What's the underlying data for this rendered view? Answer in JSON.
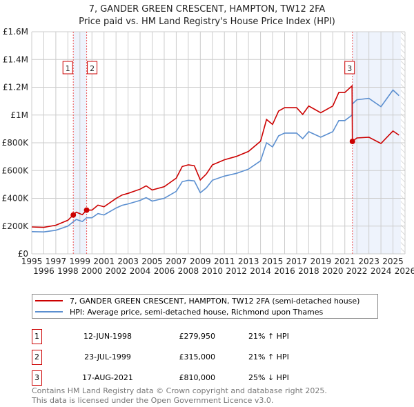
{
  "title": "7, GANDER GREEN CRESCENT, HAMPTON, TW12 2FA",
  "subtitle": "Price paid vs. HM Land Registry's House Price Index (HPI)",
  "chart_data": {
    "type": "line",
    "xlim": [
      1995,
      2026
    ],
    "ylim": [
      0,
      1600000
    ],
    "x_ticks": [
      "1995",
      "1996",
      "1997",
      "1998",
      "1999",
      "2000",
      "2001",
      "2002",
      "2003",
      "2004",
      "2005",
      "2006",
      "2007",
      "2008",
      "2009",
      "2010",
      "2011",
      "2012",
      "2013",
      "2014",
      "2015",
      "2016",
      "2017",
      "2018",
      "2019",
      "2020",
      "2021",
      "2022",
      "2023",
      "2024",
      "2025",
      "2026"
    ],
    "y_ticks": [
      {
        "v": 0,
        "label": "£0"
      },
      {
        "v": 200000,
        "label": "£200K"
      },
      {
        "v": 400000,
        "label": "£400K"
      },
      {
        "v": 600000,
        "label": "£600K"
      },
      {
        "v": 800000,
        "label": "£800K"
      },
      {
        "v": 1000000,
        "label": "£1M"
      },
      {
        "v": 1200000,
        "label": "£1.2M"
      },
      {
        "v": 1400000,
        "label": "£1.4M"
      },
      {
        "v": 1600000,
        "label": "£1.6M"
      }
    ],
    "series": [
      {
        "name": "7, GANDER GREEN CRESCENT, HAMPTON, TW12 2FA (semi-detached house)",
        "color": "#cc0000",
        "x": [
          1995,
          1996,
          1997,
          1998,
          1998.45,
          1998.7,
          1999.2,
          1999.56,
          2000,
          2000.5,
          2001,
          2002,
          2002.5,
          2003,
          2004,
          2004.5,
          2005,
          2006,
          2007,
          2007.5,
          2008,
          2008.5,
          2009,
          2009.5,
          2010,
          2011,
          2012,
          2013,
          2014,
          2014.5,
          2015,
          2015.5,
          2016,
          2017,
          2017.5,
          2018,
          2018.5,
          2019,
          2020,
          2020.5,
          2021,
          2021.6,
          2021.63,
          2022,
          2023,
          2024,
          2024.5,
          2025,
          2025.5
        ],
        "y": [
          194000,
          191000,
          206000,
          242000,
          280000,
          300000,
          282000,
          315000,
          315000,
          351000,
          339000,
          399000,
          424000,
          436000,
          466000,
          490000,
          460000,
          484000,
          545000,
          629000,
          641000,
          635000,
          532000,
          575000,
          641000,
          678000,
          702000,
          738000,
          811000,
          968000,
          932000,
          1029000,
          1053000,
          1053000,
          1004000,
          1065000,
          1041000,
          1016000,
          1065000,
          1162000,
          1162000,
          1210000,
          810000,
          835000,
          840000,
          795000,
          840000,
          885000,
          855000
        ]
      },
      {
        "name": "HPI: Average price, semi-detached house, Richmond upon Thames",
        "color": "#5b8fd0",
        "x": [
          1995,
          1996,
          1997,
          1998,
          1998.45,
          1998.7,
          1999.2,
          1999.56,
          2000,
          2000.5,
          2001,
          2002,
          2002.5,
          2003,
          2004,
          2004.5,
          2005,
          2006,
          2007,
          2007.5,
          2008,
          2008.5,
          2009,
          2009.5,
          2010,
          2011,
          2012,
          2013,
          2014,
          2014.5,
          2015,
          2015.5,
          2016,
          2017,
          2017.5,
          2018,
          2018.5,
          2019,
          2020,
          2020.5,
          2021,
          2021.6,
          2021.63,
          2022,
          2023,
          2024,
          2024.5,
          2025,
          2025.5
        ],
        "y": [
          160000,
          158000,
          170000,
          200000,
          231000,
          248000,
          233000,
          260000,
          260000,
          290000,
          280000,
          330000,
          350000,
          360000,
          385000,
          405000,
          380000,
          400000,
          450000,
          520000,
          530000,
          525000,
          440000,
          475000,
          530000,
          560000,
          580000,
          610000,
          670000,
          800000,
          770000,
          850000,
          870000,
          870000,
          830000,
          880000,
          860000,
          840000,
          880000,
          960000,
          960000,
          1000000,
          1080000,
          1110000,
          1120000,
          1060000,
          1120000,
          1180000,
          1140000
        ]
      }
    ],
    "sales": [
      {
        "id": "1",
        "x": 1998.45,
        "y": 279950
      },
      {
        "id": "2",
        "x": 1999.56,
        "y": 315000
      },
      {
        "id": "3",
        "x": 2021.63,
        "y": 810000
      }
    ],
    "shaded": [
      [
        1998.45,
        1999.56
      ],
      [
        2021.63,
        2025.65
      ]
    ],
    "hatched_from": 2025.65
  },
  "legend": {
    "red": "7, GANDER GREEN CRESCENT, HAMPTON, TW12 2FA (semi-detached house)",
    "blue": "HPI: Average price, semi-detached house, Richmond upon Thames"
  },
  "transactions": [
    {
      "num": "1",
      "date": "12-JUN-1998",
      "price": "£279,950",
      "hpi": "21% ↑ HPI"
    },
    {
      "num": "2",
      "date": "23-JUL-1999",
      "price": "£315,000",
      "hpi": "21% ↑ HPI"
    },
    {
      "num": "3",
      "date": "17-AUG-2021",
      "price": "£810,000",
      "hpi": "25% ↓ HPI"
    }
  ],
  "footer": {
    "line1": "Contains HM Land Registry data © Crown copyright and database right 2025.",
    "line2": "This data is licensed under the Open Government Licence v3.0."
  }
}
